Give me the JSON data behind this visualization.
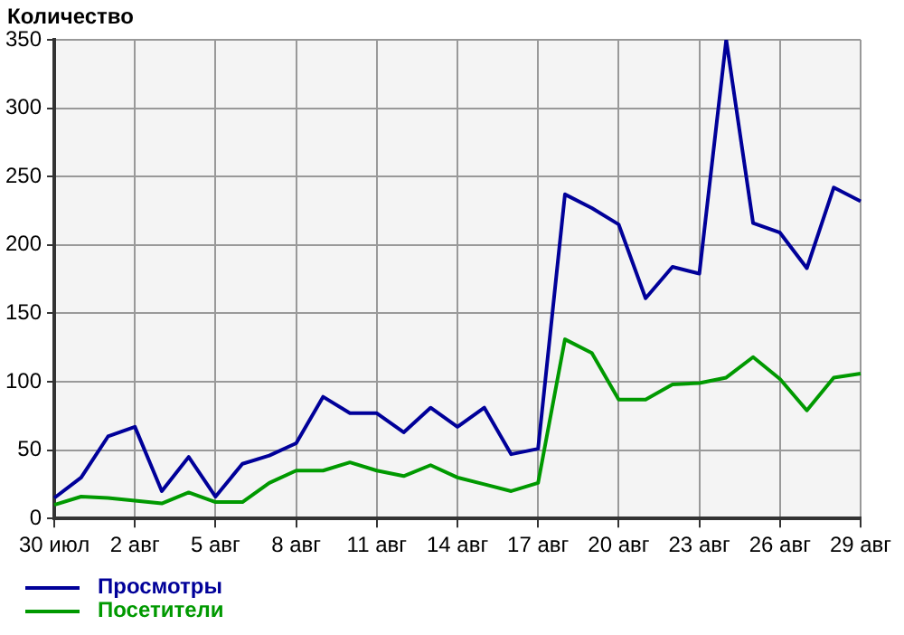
{
  "chart_data": {
    "type": "line",
    "ylabel": "Количество",
    "categories": [
      "30 июл",
      null,
      null,
      "2 авг",
      null,
      null,
      "5 авг",
      null,
      null,
      "8 авг",
      null,
      null,
      "11 авг",
      null,
      null,
      "14 авг",
      null,
      null,
      "17 авг",
      null,
      null,
      "20 авг",
      null,
      null,
      "23 авг",
      null,
      null,
      "26 авг",
      null,
      null,
      "29 авг"
    ],
    "series": [
      {
        "name": "Просмотры",
        "color": "#000099",
        "values": [
          15,
          30,
          60,
          67,
          20,
          45,
          16,
          40,
          46,
          55,
          89,
          77,
          77,
          63,
          81,
          67,
          81,
          47,
          51,
          237,
          227,
          215,
          161,
          184,
          179,
          350,
          216,
          209,
          183,
          242,
          232
        ]
      },
      {
        "name": "Посетители",
        "color": "#009900",
        "values": [
          10,
          16,
          15,
          13,
          11,
          19,
          12,
          12,
          26,
          35,
          35,
          41,
          35,
          31,
          39,
          30,
          25,
          20,
          26,
          131,
          121,
          87,
          87,
          98,
          99,
          103,
          118,
          102,
          79,
          103,
          106
        ]
      }
    ],
    "ylim": [
      0,
      350
    ],
    "yticks": [
      0,
      50,
      100,
      150,
      200,
      250,
      300,
      350
    ],
    "grid": true,
    "legend": "bottom left",
    "marker": "none",
    "line_style": "solid"
  }
}
